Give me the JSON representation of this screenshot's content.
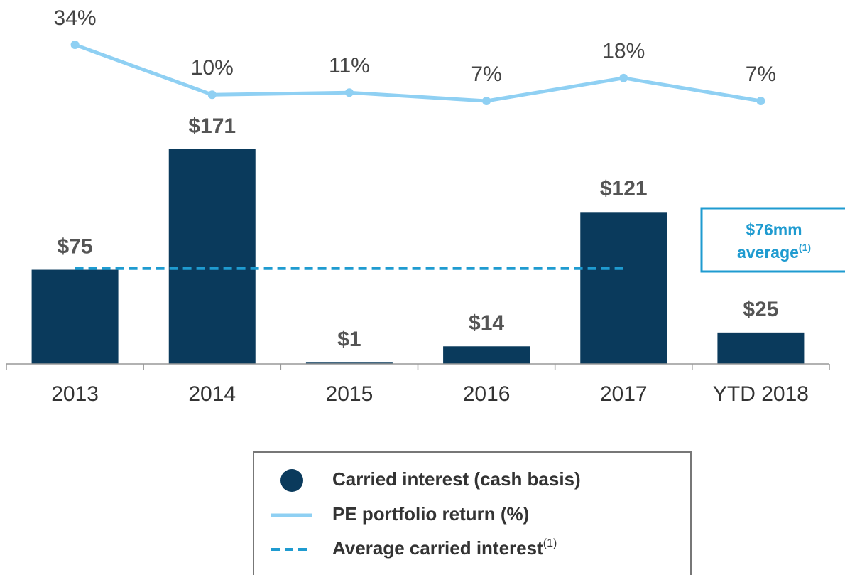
{
  "chart_data": {
    "type": "bar",
    "categories": [
      "2013",
      "2014",
      "2015",
      "2016",
      "2017",
      "YTD 2018"
    ],
    "series": [
      {
        "name": "Carried interest (cash basis)",
        "color": "#0a3a5c",
        "values": [
          75,
          171,
          1,
          14,
          121,
          25
        ],
        "value_labels": [
          "$75",
          "$171",
          "$1",
          "$14",
          "$121",
          "$25"
        ]
      },
      {
        "name": "PE portfolio return (%)",
        "type": "line",
        "color": "#8fd0f3",
        "values": [
          34,
          10,
          11,
          7,
          18,
          7
        ],
        "value_labels": [
          "34%",
          "10%",
          "11%",
          "7%",
          "18%",
          "7%"
        ]
      }
    ],
    "average": {
      "name": "Average carried interest",
      "name_note": "(1)",
      "value": 76,
      "color": "#1f9bd0",
      "annotation": "$76mm",
      "annotation_line2": "average",
      "annotation_note": "(1)"
    }
  }
}
